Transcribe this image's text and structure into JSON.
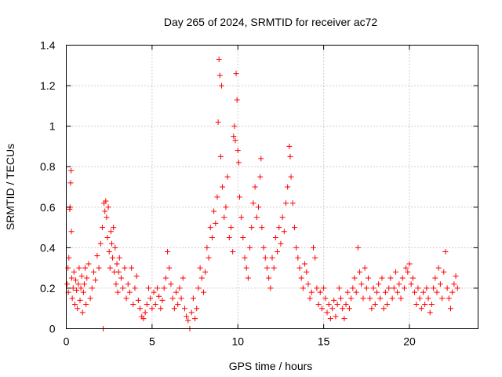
{
  "chart_data": {
    "type": "scatter",
    "title": "Day 265 of 2024, SRMTID for receiver ac72",
    "xlabel": "GPS time / hours",
    "ylabel": "SRMTID / TECUs",
    "xlim": [
      0,
      24
    ],
    "ylim": [
      0,
      1.4
    ],
    "xticks": [
      0,
      5,
      10,
      15,
      20
    ],
    "xtick_labels": [
      "0",
      "5",
      "10",
      "15",
      "20"
    ],
    "yticks": [
      0,
      0.2,
      0.4,
      0.6,
      0.8,
      1.0,
      1.2,
      1.4
    ],
    "ytick_labels": [
      "0",
      "0.2",
      "0.4",
      "0.6",
      "0.8",
      "1",
      "1.2",
      "1.4"
    ],
    "grid": true,
    "marker": "+",
    "color": "#ff0000",
    "series": [
      {
        "name": "SRMTID",
        "points": [
          [
            0.05,
            0.22
          ],
          [
            0.1,
            0.3
          ],
          [
            0.12,
            0.18
          ],
          [
            0.15,
            0.35
          ],
          [
            0.2,
            0.59
          ],
          [
            0.22,
            0.6
          ],
          [
            0.25,
            0.72
          ],
          [
            0.28,
            0.78
          ],
          [
            0.3,
            0.48
          ],
          [
            0.32,
            0.25
          ],
          [
            0.35,
            0.15
          ],
          [
            0.4,
            0.2
          ],
          [
            0.45,
            0.28
          ],
          [
            0.5,
            0.12
          ],
          [
            0.55,
            0.24
          ],
          [
            0.6,
            0.19
          ],
          [
            0.65,
            0.1
          ],
          [
            0.7,
            0.22
          ],
          [
            0.75,
            0.3
          ],
          [
            0.8,
            0.14
          ],
          [
            0.85,
            0.2
          ],
          [
            0.9,
            0.26
          ],
          [
            0.95,
            0.08
          ],
          [
            1.0,
            0.18
          ],
          [
            1.05,
            0.22
          ],
          [
            1.1,
            0.3
          ],
          [
            1.15,
            0.12
          ],
          [
            1.2,
            0.25
          ],
          [
            1.3,
            0.32
          ],
          [
            1.4,
            0.15
          ],
          [
            1.5,
            0.2
          ],
          [
            1.6,
            0.28
          ],
          [
            1.7,
            0.24
          ],
          [
            1.8,
            0.36
          ],
          [
            1.9,
            0.3
          ],
          [
            2.0,
            0.42
          ],
          [
            2.1,
            0.5
          ],
          [
            2.15,
            0.0
          ],
          [
            2.2,
            0.62
          ],
          [
            2.25,
            0.58
          ],
          [
            2.3,
            0.63
          ],
          [
            2.35,
            0.55
          ],
          [
            2.4,
            0.45
          ],
          [
            2.45,
            0.6
          ],
          [
            2.5,
            0.38
          ],
          [
            2.55,
            0.3
          ],
          [
            2.6,
            0.48
          ],
          [
            2.65,
            0.42
          ],
          [
            2.7,
            0.35
          ],
          [
            2.75,
            0.5
          ],
          [
            2.8,
            0.28
          ],
          [
            2.85,
            0.4
          ],
          [
            2.9,
            0.22
          ],
          [
            2.95,
            0.32
          ],
          [
            3.0,
            0.18
          ],
          [
            3.05,
            0.28
          ],
          [
            3.1,
            0.35
          ],
          [
            3.2,
            0.25
          ],
          [
            3.3,
            0.2
          ],
          [
            3.4,
            0.3
          ],
          [
            3.5,
            0.15
          ],
          [
            3.6,
            0.22
          ],
          [
            3.7,
            0.18
          ],
          [
            3.8,
            0.3
          ],
          [
            3.9,
            0.12
          ],
          [
            4.0,
            0.2
          ],
          [
            4.1,
            0.26
          ],
          [
            4.2,
            0.14
          ],
          [
            4.3,
            0.1
          ],
          [
            4.4,
            0.06
          ],
          [
            4.5,
            0.05
          ],
          [
            4.6,
            0.08
          ],
          [
            4.7,
            0.12
          ],
          [
            4.8,
            0.2
          ],
          [
            4.9,
            0.15
          ],
          [
            5.0,
            0.1
          ],
          [
            5.1,
            0.18
          ],
          [
            5.2,
            0.12
          ],
          [
            5.3,
            0.2
          ],
          [
            5.4,
            0.16
          ],
          [
            5.5,
            0.1
          ],
          [
            5.6,
            0.14
          ],
          [
            5.7,
            0.2
          ],
          [
            5.8,
            0.25
          ],
          [
            5.9,
            0.38
          ],
          [
            6.0,
            0.3
          ],
          [
            6.1,
            0.22
          ],
          [
            6.2,
            0.15
          ],
          [
            6.3,
            0.1
          ],
          [
            6.4,
            0.18
          ],
          [
            6.5,
            0.12
          ],
          [
            6.6,
            0.2
          ],
          [
            6.7,
            0.15
          ],
          [
            6.8,
            0.25
          ],
          [
            6.9,
            0.1
          ],
          [
            7.0,
            0.06
          ],
          [
            7.1,
            0.04
          ],
          [
            7.2,
            0.0
          ],
          [
            7.3,
            0.08
          ],
          [
            7.4,
            0.15
          ],
          [
            7.5,
            0.05
          ],
          [
            7.6,
            0.1
          ],
          [
            7.7,
            0.2
          ],
          [
            7.8,
            0.3
          ],
          [
            7.9,
            0.25
          ],
          [
            8.0,
            0.18
          ],
          [
            8.1,
            0.28
          ],
          [
            8.2,
            0.4
          ],
          [
            8.3,
            0.35
          ],
          [
            8.4,
            0.5
          ],
          [
            8.5,
            0.45
          ],
          [
            8.6,
            0.58
          ],
          [
            8.7,
            0.52
          ],
          [
            8.8,
            0.65
          ],
          [
            8.85,
            1.02
          ],
          [
            8.9,
            1.33
          ],
          [
            8.95,
            1.25
          ],
          [
            9.0,
            0.85
          ],
          [
            9.05,
            1.2
          ],
          [
            9.1,
            0.7
          ],
          [
            9.2,
            0.55
          ],
          [
            9.3,
            0.6
          ],
          [
            9.4,
            0.75
          ],
          [
            9.5,
            0.45
          ],
          [
            9.6,
            0.5
          ],
          [
            9.7,
            0.38
          ],
          [
            9.75,
            0.95
          ],
          [
            9.8,
            1.0
          ],
          [
            9.85,
            0.93
          ],
          [
            9.9,
            1.26
          ],
          [
            9.95,
            1.13
          ],
          [
            10.0,
            0.88
          ],
          [
            10.05,
            0.82
          ],
          [
            10.1,
            0.65
          ],
          [
            10.2,
            0.55
          ],
          [
            10.3,
            0.45
          ],
          [
            10.4,
            0.35
          ],
          [
            10.5,
            0.3
          ],
          [
            10.6,
            0.25
          ],
          [
            10.7,
            0.4
          ],
          [
            10.8,
            0.5
          ],
          [
            10.9,
            0.62
          ],
          [
            11.0,
            0.7
          ],
          [
            11.1,
            0.55
          ],
          [
            11.2,
            0.6
          ],
          [
            11.3,
            0.75
          ],
          [
            11.35,
            0.84
          ],
          [
            11.4,
            0.5
          ],
          [
            11.5,
            0.4
          ],
          [
            11.6,
            0.35
          ],
          [
            11.7,
            0.3
          ],
          [
            11.8,
            0.25
          ],
          [
            11.9,
            0.2
          ],
          [
            12.0,
            0.35
          ],
          [
            12.1,
            0.3
          ],
          [
            12.2,
            0.45
          ],
          [
            12.3,
            0.38
          ],
          [
            12.4,
            0.5
          ],
          [
            12.5,
            0.42
          ],
          [
            12.6,
            0.55
          ],
          [
            12.7,
            0.48
          ],
          [
            12.8,
            0.62
          ],
          [
            12.9,
            0.7
          ],
          [
            13.0,
            0.9
          ],
          [
            13.05,
            0.85
          ],
          [
            13.1,
            0.75
          ],
          [
            13.2,
            0.62
          ],
          [
            13.3,
            0.5
          ],
          [
            13.4,
            0.4
          ],
          [
            13.5,
            0.35
          ],
          [
            13.6,
            0.3
          ],
          [
            13.7,
            0.25
          ],
          [
            13.8,
            0.2
          ],
          [
            13.9,
            0.32
          ],
          [
            14.0,
            0.28
          ],
          [
            14.1,
            0.22
          ],
          [
            14.2,
            0.15
          ],
          [
            14.3,
            0.18
          ],
          [
            14.4,
            0.4
          ],
          [
            14.5,
            0.35
          ],
          [
            14.6,
            0.2
          ],
          [
            14.7,
            0.12
          ],
          [
            14.8,
            0.18
          ],
          [
            14.9,
            0.1
          ],
          [
            15.0,
            0.2
          ],
          [
            15.1,
            0.15
          ],
          [
            15.2,
            0.08
          ],
          [
            15.3,
            0.12
          ],
          [
            15.4,
            0.05
          ],
          [
            15.5,
            0.1
          ],
          [
            15.6,
            0.14
          ],
          [
            15.7,
            0.06
          ],
          [
            15.8,
            0.12
          ],
          [
            15.9,
            0.2
          ],
          [
            16.0,
            0.15
          ],
          [
            16.1,
            0.1
          ],
          [
            16.2,
            0.05
          ],
          [
            16.3,
            0.12
          ],
          [
            16.4,
            0.18
          ],
          [
            16.5,
            0.1
          ],
          [
            16.6,
            0.15
          ],
          [
            16.7,
            0.2
          ],
          [
            16.8,
            0.25
          ],
          [
            16.9,
            0.18
          ],
          [
            17.0,
            0.4
          ],
          [
            17.1,
            0.28
          ],
          [
            17.2,
            0.22
          ],
          [
            17.3,
            0.15
          ],
          [
            17.4,
            0.3
          ],
          [
            17.5,
            0.2
          ],
          [
            17.6,
            0.25
          ],
          [
            17.7,
            0.15
          ],
          [
            17.8,
            0.1
          ],
          [
            17.9,
            0.2
          ],
          [
            18.0,
            0.12
          ],
          [
            18.1,
            0.18
          ],
          [
            18.2,
            0.22
          ],
          [
            18.3,
            0.15
          ],
          [
            18.4,
            0.25
          ],
          [
            18.5,
            0.1
          ],
          [
            18.6,
            0.18
          ],
          [
            18.7,
            0.12
          ],
          [
            18.8,
            0.2
          ],
          [
            18.9,
            0.25
          ],
          [
            19.0,
            0.15
          ],
          [
            19.1,
            0.2
          ],
          [
            19.2,
            0.28
          ],
          [
            19.3,
            0.18
          ],
          [
            19.4,
            0.22
          ],
          [
            19.5,
            0.15
          ],
          [
            19.6,
            0.25
          ],
          [
            19.7,
            0.2
          ],
          [
            19.8,
            0.3
          ],
          [
            19.9,
            0.28
          ],
          [
            20.0,
            0.32
          ],
          [
            20.1,
            0.22
          ],
          [
            20.2,
            0.25
          ],
          [
            20.3,
            0.18
          ],
          [
            20.4,
            0.12
          ],
          [
            20.5,
            0.2
          ],
          [
            20.6,
            0.15
          ],
          [
            20.7,
            0.1
          ],
          [
            20.8,
            0.18
          ],
          [
            20.9,
            0.12
          ],
          [
            21.0,
            0.2
          ],
          [
            21.1,
            0.15
          ],
          [
            21.2,
            0.08
          ],
          [
            21.3,
            0.12
          ],
          [
            21.4,
            0.2
          ],
          [
            21.5,
            0.25
          ],
          [
            21.6,
            0.18
          ],
          [
            21.7,
            0.3
          ],
          [
            21.8,
            0.22
          ],
          [
            21.9,
            0.15
          ],
          [
            22.0,
            0.28
          ],
          [
            22.1,
            0.38
          ],
          [
            22.2,
            0.2
          ],
          [
            22.3,
            0.15
          ],
          [
            22.4,
            0.1
          ],
          [
            22.5,
            0.18
          ],
          [
            22.6,
            0.22
          ],
          [
            22.7,
            0.26
          ],
          [
            22.8,
            0.2
          ]
        ]
      }
    ]
  }
}
